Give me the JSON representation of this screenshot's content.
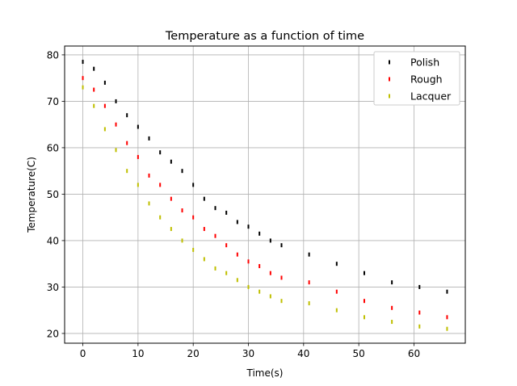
{
  "chart_data": {
    "type": "scatter",
    "title": "Temperature as a function of time",
    "xlabel": "Time(s)",
    "ylabel": "Temperature(C)",
    "xlim": [
      -3.3,
      69.3
    ],
    "ylim": [
      17.9,
      81.9
    ],
    "xticks": [
      0,
      10,
      20,
      30,
      40,
      50,
      60
    ],
    "yticks": [
      20,
      30,
      40,
      50,
      60,
      70,
      80
    ],
    "grid": true,
    "legend_position": "top-right",
    "series": [
      {
        "name": "Polish",
        "color": "#000000",
        "x": [
          0,
          2,
          4,
          6,
          8,
          10,
          12,
          14,
          16,
          18,
          20,
          22,
          24,
          26,
          28,
          30,
          32,
          34,
          36,
          41,
          46,
          51,
          56,
          61,
          66
        ],
        "y": [
          78.5,
          77,
          74,
          70,
          67,
          64.5,
          62,
          59,
          57,
          55,
          52,
          49,
          47,
          46,
          44,
          43,
          41.5,
          40,
          39,
          37,
          35,
          33,
          31,
          30,
          29
        ]
      },
      {
        "name": "Rough",
        "color": "#ff0000",
        "x": [
          0,
          2,
          4,
          6,
          8,
          10,
          12,
          14,
          16,
          18,
          20,
          22,
          24,
          26,
          28,
          30,
          32,
          34,
          36,
          41,
          46,
          51,
          56,
          61,
          66
        ],
        "y": [
          75,
          72.5,
          69,
          65,
          61,
          58,
          54,
          52,
          49,
          46.5,
          45,
          42.5,
          41,
          39,
          37,
          35.5,
          34.5,
          33,
          32,
          31,
          29,
          27,
          25.5,
          24.5,
          23.5
        ]
      },
      {
        "name": "Lacquer",
        "color": "#bfbf00",
        "x": [
          0,
          2,
          4,
          6,
          8,
          10,
          12,
          14,
          16,
          18,
          20,
          22,
          24,
          26,
          28,
          30,
          32,
          34,
          36,
          41,
          46,
          51,
          56,
          61,
          66
        ],
        "y": [
          73,
          69,
          64,
          59.5,
          55,
          52,
          48,
          45,
          42.5,
          40,
          38,
          36,
          34,
          33,
          31.5,
          30,
          29,
          28,
          27,
          26.5,
          25,
          23.5,
          22.5,
          21.5,
          21
        ]
      }
    ]
  }
}
